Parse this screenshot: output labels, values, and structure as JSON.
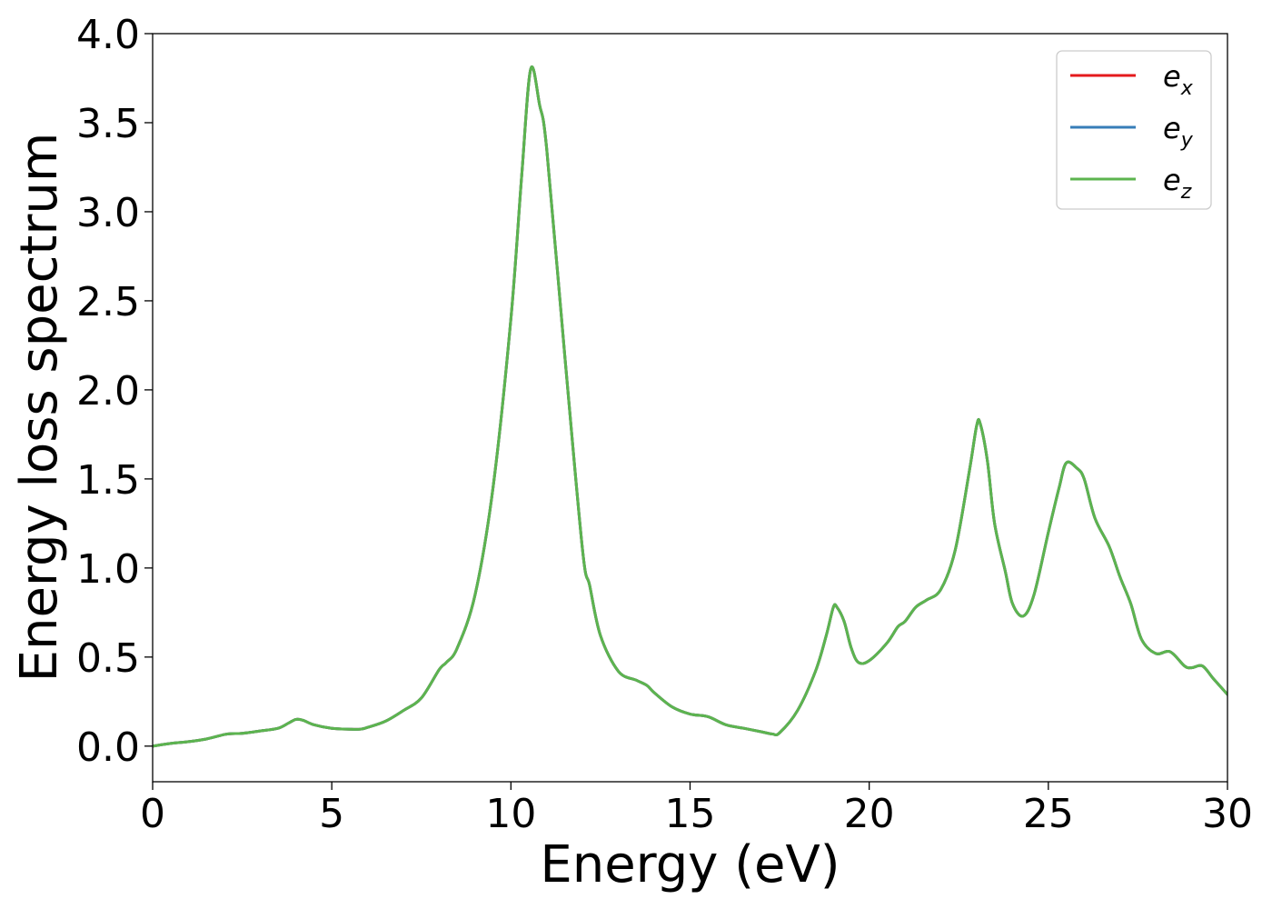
{
  "chart_data": {
    "type": "line",
    "xlabel": "Energy (eV)",
    "ylabel": "Energy loss spectrum",
    "xlim": [
      0,
      30
    ],
    "ylim": [
      -0.2,
      4.0
    ],
    "x_ticks": [
      "0",
      "5",
      "10",
      "15",
      "20",
      "25",
      "30"
    ],
    "y_ticks": [
      "0.0",
      "0.5",
      "1.0",
      "1.5",
      "2.0",
      "2.5",
      "3.0",
      "3.5",
      "4.0"
    ],
    "grid": false,
    "legend_position": "top-right",
    "x": [
      0.0,
      0.5,
      1.0,
      1.5,
      2.0,
      2.2,
      2.5,
      3.0,
      3.5,
      3.8,
      4.0,
      4.2,
      4.5,
      5.0,
      5.5,
      5.8,
      6.0,
      6.5,
      7.0,
      7.5,
      8.0,
      8.2,
      8.5,
      9.0,
      9.5,
      10.0,
      10.3,
      10.55,
      10.8,
      11.0,
      11.5,
      12.0,
      12.2,
      12.5,
      13.0,
      13.5,
      13.8,
      14.0,
      14.5,
      15.0,
      15.5,
      16.0,
      16.5,
      17.0,
      17.3,
      17.5,
      18.0,
      18.5,
      18.8,
      19.0,
      19.1,
      19.3,
      19.5,
      19.7,
      20.0,
      20.5,
      20.8,
      21.0,
      21.3,
      21.6,
      22.0,
      22.4,
      22.8,
      23.0,
      23.1,
      23.3,
      23.5,
      23.8,
      24.0,
      24.3,
      24.6,
      25.0,
      25.3,
      25.5,
      25.8,
      26.0,
      26.3,
      26.7,
      27.0,
      27.3,
      27.6,
      28.0,
      28.4,
      28.8,
      29.0,
      29.3,
      29.6,
      30.0
    ],
    "series": [
      {
        "name": "e_x",
        "label_base": "e",
        "label_sub": "x",
        "color": "#e41a1c",
        "values": [
          0.0,
          0.015,
          0.025,
          0.04,
          0.065,
          0.07,
          0.072,
          0.085,
          0.1,
          0.13,
          0.15,
          0.145,
          0.12,
          0.1,
          0.095,
          0.095,
          0.105,
          0.14,
          0.2,
          0.27,
          0.43,
          0.47,
          0.55,
          0.85,
          1.45,
          2.4,
          3.2,
          3.8,
          3.6,
          3.35,
          2.2,
          1.1,
          0.9,
          0.62,
          0.42,
          0.37,
          0.34,
          0.3,
          0.22,
          0.18,
          0.165,
          0.12,
          0.1,
          0.08,
          0.068,
          0.075,
          0.2,
          0.42,
          0.62,
          0.78,
          0.78,
          0.7,
          0.55,
          0.47,
          0.48,
          0.58,
          0.67,
          0.7,
          0.78,
          0.82,
          0.88,
          1.1,
          1.55,
          1.8,
          1.81,
          1.6,
          1.25,
          0.98,
          0.8,
          0.73,
          0.85,
          1.2,
          1.45,
          1.59,
          1.56,
          1.5,
          1.28,
          1.12,
          0.95,
          0.8,
          0.6,
          0.52,
          0.53,
          0.45,
          0.44,
          0.45,
          0.38,
          0.29
        ]
      },
      {
        "name": "e_y",
        "label_base": "e",
        "label_sub": "y",
        "color": "#377eb8",
        "values": [
          0.0,
          0.015,
          0.025,
          0.04,
          0.065,
          0.07,
          0.072,
          0.085,
          0.1,
          0.13,
          0.15,
          0.145,
          0.12,
          0.1,
          0.095,
          0.095,
          0.105,
          0.14,
          0.2,
          0.27,
          0.43,
          0.47,
          0.55,
          0.85,
          1.45,
          2.4,
          3.2,
          3.8,
          3.6,
          3.35,
          2.2,
          1.1,
          0.9,
          0.62,
          0.42,
          0.37,
          0.34,
          0.3,
          0.22,
          0.18,
          0.165,
          0.12,
          0.1,
          0.08,
          0.068,
          0.075,
          0.2,
          0.42,
          0.62,
          0.78,
          0.78,
          0.7,
          0.55,
          0.47,
          0.48,
          0.58,
          0.67,
          0.7,
          0.78,
          0.82,
          0.88,
          1.1,
          1.55,
          1.8,
          1.81,
          1.6,
          1.25,
          0.98,
          0.8,
          0.73,
          0.85,
          1.2,
          1.45,
          1.59,
          1.56,
          1.5,
          1.28,
          1.12,
          0.95,
          0.8,
          0.6,
          0.52,
          0.53,
          0.45,
          0.44,
          0.45,
          0.38,
          0.29
        ]
      },
      {
        "name": "e_z",
        "label_base": "e",
        "label_sub": "z",
        "color": "#5cb44f",
        "values": [
          0.0,
          0.015,
          0.025,
          0.04,
          0.065,
          0.07,
          0.072,
          0.085,
          0.1,
          0.13,
          0.15,
          0.145,
          0.12,
          0.1,
          0.095,
          0.095,
          0.105,
          0.14,
          0.2,
          0.27,
          0.43,
          0.47,
          0.55,
          0.85,
          1.45,
          2.4,
          3.2,
          3.8,
          3.6,
          3.35,
          2.2,
          1.1,
          0.9,
          0.62,
          0.42,
          0.37,
          0.34,
          0.3,
          0.22,
          0.18,
          0.165,
          0.12,
          0.1,
          0.08,
          0.068,
          0.075,
          0.2,
          0.42,
          0.62,
          0.78,
          0.78,
          0.7,
          0.55,
          0.47,
          0.48,
          0.58,
          0.67,
          0.7,
          0.78,
          0.82,
          0.88,
          1.1,
          1.55,
          1.8,
          1.81,
          1.6,
          1.25,
          0.98,
          0.8,
          0.73,
          0.85,
          1.2,
          1.45,
          1.59,
          1.56,
          1.5,
          1.28,
          1.12,
          0.95,
          0.8,
          0.6,
          0.52,
          0.53,
          0.45,
          0.44,
          0.45,
          0.38,
          0.29
        ]
      }
    ]
  }
}
